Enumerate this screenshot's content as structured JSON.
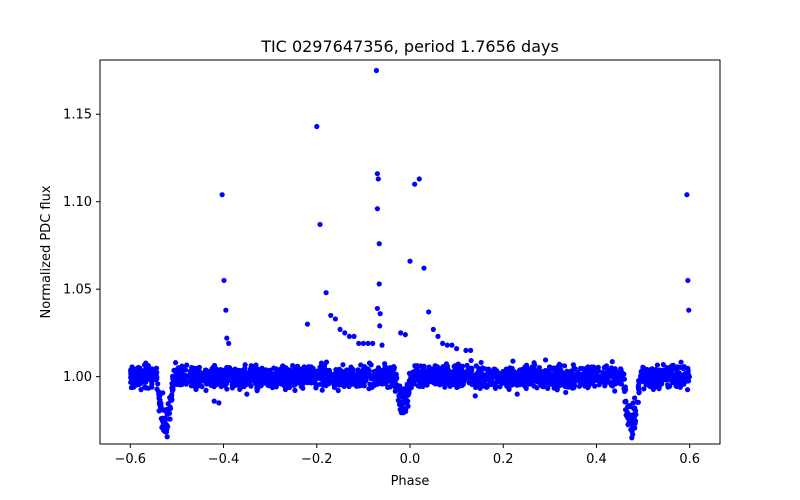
{
  "chart_data": {
    "type": "scatter",
    "title": "TIC 0297647356, period 1.7656 days",
    "xlabel": "Phase",
    "ylabel": "Normalized PDC flux",
    "xlim": [
      -0.665,
      0.665
    ],
    "ylim": [
      0.9615,
      1.181
    ],
    "xticks": [
      -0.6,
      -0.4,
      -0.2,
      0.0,
      0.2,
      0.4,
      0.6
    ],
    "xtick_labels": [
      "−0.6",
      "−0.4",
      "−0.2",
      "0.0",
      "0.2",
      "0.4",
      "0.6"
    ],
    "yticks": [
      1.0,
      1.05,
      1.1,
      1.15
    ],
    "ytick_labels": [
      "1.00",
      "1.05",
      "1.10",
      "1.15"
    ],
    "grid": false,
    "legend": "none",
    "marker_color": "#0000ff",
    "baseline": {
      "phase_range": [
        -0.6,
        0.6
      ],
      "flux_center": 1.0,
      "flux_scatter": 0.0045
    },
    "transit_dips": [
      {
        "phase_center": -0.525,
        "min_flux": 0.968
      },
      {
        "phase_center": -0.015,
        "min_flux": 0.983
      },
      {
        "phase_center": 0.475,
        "min_flux": 0.968
      }
    ],
    "outliers": [
      {
        "x": -0.403,
        "y": 1.104
      },
      {
        "x": -0.399,
        "y": 1.055
      },
      {
        "x": -0.395,
        "y": 1.038
      },
      {
        "x": -0.393,
        "y": 1.022
      },
      {
        "x": -0.389,
        "y": 1.019
      },
      {
        "x": -0.2,
        "y": 1.143
      },
      {
        "x": -0.193,
        "y": 1.087
      },
      {
        "x": -0.22,
        "y": 1.03
      },
      {
        "x": -0.18,
        "y": 1.048
      },
      {
        "x": -0.17,
        "y": 1.035
      },
      {
        "x": -0.16,
        "y": 1.033
      },
      {
        "x": -0.15,
        "y": 1.027
      },
      {
        "x": -0.14,
        "y": 1.025
      },
      {
        "x": -0.13,
        "y": 1.023
      },
      {
        "x": -0.12,
        "y": 1.023
      },
      {
        "x": -0.11,
        "y": 1.019
      },
      {
        "x": -0.1,
        "y": 1.019
      },
      {
        "x": -0.09,
        "y": 1.019
      },
      {
        "x": -0.08,
        "y": 1.019
      },
      {
        "x": -0.072,
        "y": 1.175
      },
      {
        "x": -0.07,
        "y": 1.116
      },
      {
        "x": -0.068,
        "y": 1.113
      },
      {
        "x": -0.07,
        "y": 1.096
      },
      {
        "x": -0.066,
        "y": 1.076
      },
      {
        "x": -0.066,
        "y": 1.053
      },
      {
        "x": -0.07,
        "y": 1.039
      },
      {
        "x": -0.064,
        "y": 1.036
      },
      {
        "x": -0.065,
        "y": 1.029
      },
      {
        "x": -0.06,
        "y": 1.018
      },
      {
        "x": -0.02,
        "y": 1.025
      },
      {
        "x": -0.01,
        "y": 1.024
      },
      {
        "x": 0.0,
        "y": 1.066
      },
      {
        "x": 0.01,
        "y": 1.11
      },
      {
        "x": 0.02,
        "y": 1.113
      },
      {
        "x": 0.03,
        "y": 1.062
      },
      {
        "x": 0.04,
        "y": 1.037
      },
      {
        "x": 0.05,
        "y": 1.027
      },
      {
        "x": 0.06,
        "y": 1.023
      },
      {
        "x": 0.07,
        "y": 1.019
      },
      {
        "x": 0.08,
        "y": 1.018
      },
      {
        "x": 0.09,
        "y": 1.018
      },
      {
        "x": 0.1,
        "y": 1.016
      },
      {
        "x": 0.12,
        "y": 1.015
      },
      {
        "x": 0.13,
        "y": 1.015
      },
      {
        "x": 0.594,
        "y": 1.104
      },
      {
        "x": 0.596,
        "y": 1.055
      },
      {
        "x": 0.598,
        "y": 1.038
      },
      {
        "x": -0.42,
        "y": 0.986
      },
      {
        "x": -0.41,
        "y": 0.985
      },
      {
        "x": 0.14,
        "y": 0.989
      },
      {
        "x": 0.23,
        "y": 0.99
      },
      {
        "x": -0.35,
        "y": 0.99
      }
    ]
  }
}
